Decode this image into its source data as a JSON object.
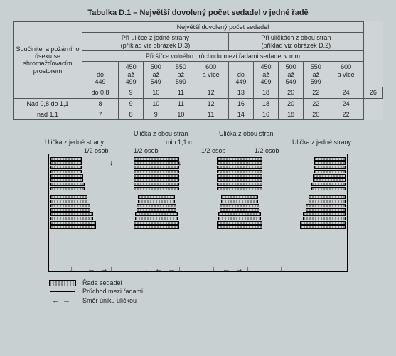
{
  "title": "Tabulka D.1 – Největší dovolený počet sedadel v jedné řadě",
  "table": {
    "row_header": "Součinitel a požárního úseku se shromažďovacím prostorem",
    "sup_header": "Největší dovolený počet sedadel",
    "left_group": "Při uličce z jedné strany\n(příklad viz obrázek D.3)",
    "right_group": "Při uličkách z obou stran\n(příklad viz obrázek D.2)",
    "sub_header": "Při šířce volného průchodu mezi řadami sedadel v mm",
    "col_labels_top": [
      "",
      "450",
      "500",
      "550",
      "600",
      "",
      "450",
      "500",
      "550",
      "600"
    ],
    "col_labels_mid": [
      "do",
      "až",
      "až",
      "až",
      "a více",
      "do",
      "až",
      "až",
      "až",
      "a více"
    ],
    "col_labels_bot": [
      "449",
      "499",
      "549",
      "599",
      "",
      "449",
      "499",
      "549",
      "599",
      ""
    ],
    "rows": [
      {
        "label": "do 0,8",
        "cells": [
          "9",
          "10",
          "11",
          "12",
          "13",
          "18",
          "20",
          "22",
          "24",
          "26"
        ]
      },
      {
        "label": "Nad 0,8 do 1,1",
        "cells": [
          "8",
          "9",
          "10",
          "11",
          "12",
          "16",
          "18",
          "20",
          "22",
          "24"
        ]
      },
      {
        "label": "nad 1,1",
        "cells": [
          "7",
          "8",
          "9",
          "10",
          "11",
          "14",
          "16",
          "18",
          "20",
          "22"
        ]
      }
    ]
  },
  "diagram": {
    "center_top": "Ulička z obou stran",
    "center_top2": "Ulička z obou stran",
    "left_mid": "Ulička z jedné strany",
    "right_mid": "Ulička z jedné strany",
    "min_label": "min.1,1 m",
    "fractions": [
      "1/2 osob",
      "1/2 osob",
      "1/2 osob",
      "1/2 osob"
    ],
    "blocks": [
      {
        "rows": 16,
        "widths": [
          44,
          44,
          44,
          44,
          46,
          46,
          48,
          48,
          52,
          52,
          56,
          56,
          60,
          60,
          64,
          64
        ],
        "align": "left"
      },
      {
        "rows": 16,
        "widths": [
          64,
          64,
          64,
          64,
          64,
          64,
          64,
          64,
          52,
          52,
          56,
          56,
          60,
          60,
          64,
          64
        ],
        "align": "center"
      },
      {
        "rows": 16,
        "widths": [
          64,
          64,
          64,
          64,
          64,
          64,
          64,
          64,
          52,
          52,
          56,
          56,
          60,
          60,
          64,
          64
        ],
        "align": "center"
      },
      {
        "rows": 16,
        "widths": [
          44,
          44,
          44,
          44,
          46,
          46,
          48,
          48,
          52,
          52,
          56,
          56,
          60,
          60,
          64,
          64
        ],
        "align": "right"
      }
    ]
  },
  "legend": {
    "l1": "Řada sedadel",
    "l2": "Průchod mezi řadami",
    "l3": "Směr úniku uličkou"
  }
}
